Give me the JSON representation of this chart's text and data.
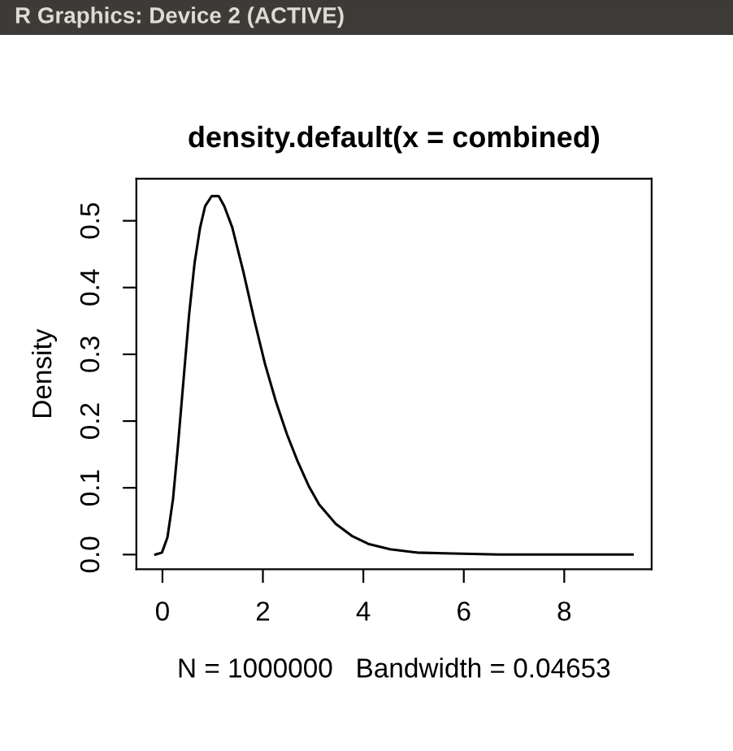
{
  "chart_data": {
    "type": "line",
    "title": "density.default(x = combined)",
    "xlabel": "N = 1000000   Bandwidth = 0.04653",
    "ylabel": "Density",
    "annotations": [
      "R Graphics: Device 2 (ACTIVE)"
    ],
    "x": [
      -0.14,
      -0.01,
      0.1,
      0.21,
      0.31,
      0.42,
      0.53,
      0.64,
      0.75,
      0.85,
      0.98,
      1.12,
      1.23,
      1.39,
      1.61,
      1.83,
      2.04,
      2.26,
      2.48,
      2.69,
      2.91,
      3.12,
      3.45,
      3.77,
      4.1,
      4.53,
      5.07,
      5.61,
      6.69,
      9.36
    ],
    "series": [
      {
        "color": "#000000",
        "values": [
          0,
          0.003,
          0.026,
          0.083,
          0.164,
          0.262,
          0.359,
          0.437,
          0.49,
          0.522,
          0.537,
          0.537,
          0.522,
          0.49,
          0.424,
          0.351,
          0.286,
          0.229,
          0.18,
          0.14,
          0.103,
          0.075,
          0.046,
          0.028,
          0.016,
          0.008,
          0.003,
          0.002,
          0,
          0
        ]
      }
    ],
    "xlim": [
      -0.52,
      9.74
    ],
    "ylim": [
      -0.022,
      0.563
    ],
    "xticks": [
      0,
      2,
      4,
      6,
      8
    ],
    "yticks": [
      {
        "value": 0,
        "label": "0.0"
      },
      0.1,
      0.2,
      0.3,
      0.4,
      0.5
    ],
    "grid": false,
    "legend": false,
    "marker": "none",
    "line_style": "solid"
  }
}
